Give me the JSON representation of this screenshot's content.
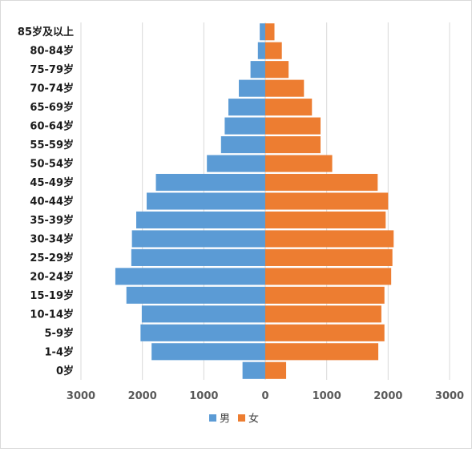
{
  "chart_data": {
    "type": "bar",
    "orientation": "horizontal",
    "layout": "population-pyramid",
    "categories": [
      "85岁及以上",
      "80-84岁",
      "75-79岁",
      "70-74岁",
      "65-69岁",
      "60-64岁",
      "55-59岁",
      "50-54岁",
      "45-49岁",
      "40-44岁",
      "35-39岁",
      "30-34岁",
      "25-29岁",
      "20-24岁",
      "15-19岁",
      "10-14岁",
      "5-9岁",
      "1-4岁",
      "0岁"
    ],
    "series": [
      {
        "name": "男",
        "color": "#5b9bd5",
        "direction": "left",
        "values": [
          90,
          120,
          240,
          430,
          600,
          660,
          720,
          950,
          1780,
          1930,
          2100,
          2170,
          2180,
          2440,
          2260,
          2010,
          2030,
          1850,
          370
        ]
      },
      {
        "name": "女",
        "color": "#ed7d31",
        "direction": "right",
        "values": [
          150,
          270,
          380,
          630,
          760,
          900,
          900,
          1090,
          1830,
          2000,
          1960,
          2090,
          2070,
          2050,
          1940,
          1890,
          1940,
          1840,
          340
        ]
      }
    ],
    "xlim": [
      -3000,
      3000
    ],
    "xticks": [
      -3000,
      -2000,
      -1000,
      0,
      1000,
      2000,
      3000
    ],
    "xtick_labels": [
      "3000",
      "2000",
      "1000",
      "0",
      "1000",
      "2000",
      "3000"
    ],
    "title": "",
    "xlabel": "",
    "ylabel": "",
    "grid": true,
    "legend_position": "bottom"
  }
}
